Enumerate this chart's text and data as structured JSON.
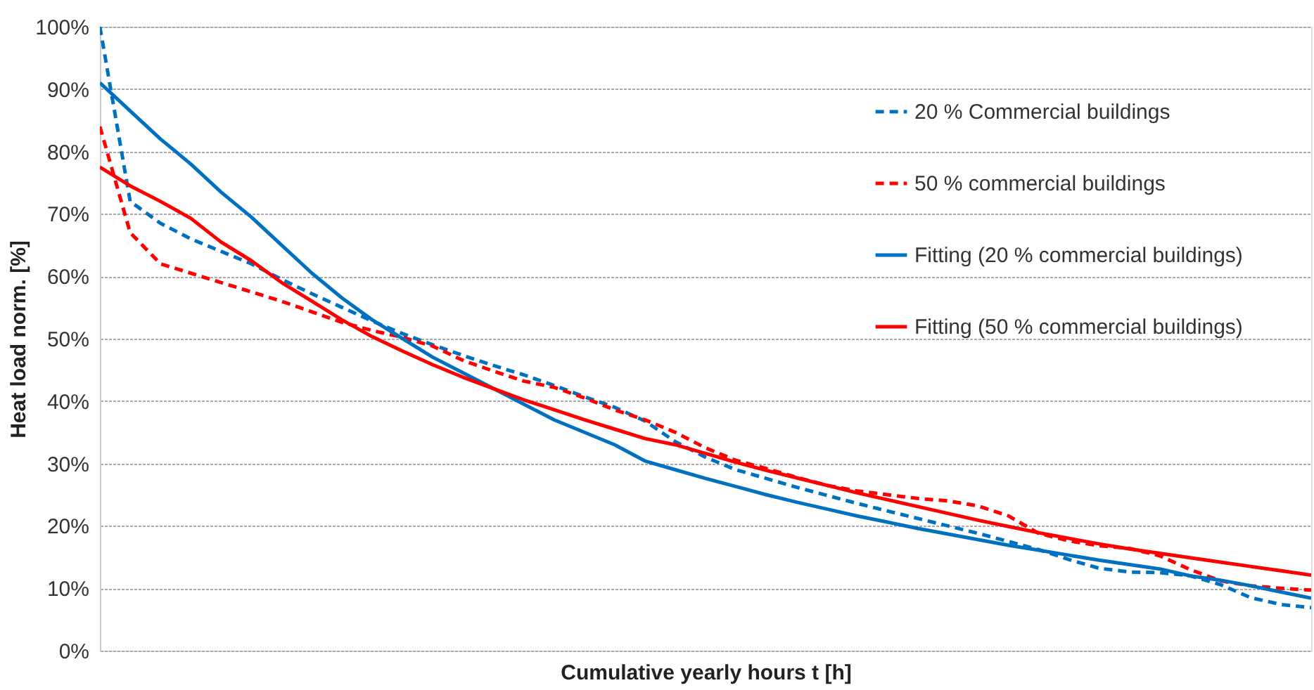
{
  "chart_data": {
    "type": "line",
    "xlabel": "Cumulative yearly hours t [h]",
    "ylabel": "Heat load norm. [%]",
    "categories": [
      null,
      null,
      null,
      null,
      null,
      null,
      null,
      null,
      null,
      null,
      null,
      null,
      null,
      null,
      null,
      null,
      null,
      null,
      null,
      null,
      null,
      null,
      null,
      null,
      null,
      null,
      null,
      null,
      null,
      null,
      null,
      null,
      null,
      null,
      null,
      null,
      null,
      null,
      null,
      null,
      null
    ],
    "series": [
      {
        "name": "20 % Commercial buildings",
        "color": "#0070c0",
        "line_style": "dashed",
        "values": [
          100,
          72,
          68.5,
          66,
          64,
          62,
          59.5,
          57.2,
          55,
          52.8,
          50.8,
          49,
          47.3,
          45.7,
          44.2,
          42.5,
          40.7,
          39,
          36.8,
          33.5,
          31,
          29,
          27.6,
          26.2,
          24.9,
          23.6,
          22.4,
          21.2,
          20,
          18.8,
          17.5,
          16.2,
          14.6,
          13.2,
          12.6,
          12.5,
          12,
          10.6,
          8.5,
          7.4,
          6.9
        ]
      },
      {
        "name": "50 % commercial buildings",
        "color": "#ff0000",
        "line_style": "dashed",
        "values": [
          84,
          67,
          62,
          60.5,
          59,
          57.5,
          56,
          54.3,
          52.6,
          51.3,
          50.2,
          48.8,
          46.5,
          44.8,
          43.2,
          42.2,
          40.5,
          38.6,
          37,
          35,
          32.5,
          30.5,
          29.2,
          27.8,
          26.5,
          25.6,
          25,
          24.4,
          24,
          23.2,
          21.6,
          18.8,
          17.6,
          16.8,
          16.4,
          15.2,
          13,
          11.2,
          10.4,
          10,
          9.7
        ]
      },
      {
        "name": "Fitting (20 % commercial buildings)",
        "color": "#0070c0",
        "line_style": "solid",
        "values": [
          91,
          86.5,
          82,
          78,
          73.5,
          69.5,
          65,
          60.5,
          56.5,
          53,
          50,
          47,
          44.5,
          42,
          39.5,
          37,
          35,
          33,
          30.4,
          29,
          27.6,
          26.3,
          25,
          23.8,
          22.7,
          21.6,
          20.6,
          19.6,
          18.7,
          17.8,
          16.9,
          16.1,
          15.3,
          14.5,
          13.8,
          13.1,
          12,
          11.3,
          10.4,
          9.4,
          8.4
        ]
      },
      {
        "name": "Fitting (50 % commercial buildings)",
        "color": "#ff0000",
        "line_style": "solid",
        "values": [
          77.5,
          74.5,
          72,
          69.3,
          65.5,
          62.5,
          59,
          56,
          53,
          50.3,
          48,
          45.8,
          43.8,
          42,
          40.2,
          38.6,
          37,
          35.5,
          34,
          33,
          31.6,
          30.2,
          28.9,
          27.7,
          26.5,
          25.3,
          24.2,
          23.1,
          22,
          20.9,
          19.9,
          18.9,
          18,
          17.1,
          16.3,
          15.6,
          14.9,
          14.2,
          13.5,
          12.8,
          12.1
        ]
      }
    ],
    "ylim": [
      0,
      100
    ],
    "yticks": [
      {
        "value": 0,
        "label": "0%"
      },
      {
        "value": 10,
        "label": "10%"
      },
      {
        "value": 20,
        "label": "20%"
      },
      {
        "value": 30,
        "label": "30%"
      },
      {
        "value": 40,
        "label": "40%"
      },
      {
        "value": 50,
        "label": "50%"
      },
      {
        "value": 60,
        "label": "60%"
      },
      {
        "value": 70,
        "label": "70%"
      },
      {
        "value": 80,
        "label": "80%"
      },
      {
        "value": 90,
        "label": "90%"
      },
      {
        "value": 100,
        "label": "100%"
      }
    ],
    "grid": "y",
    "legend": "top right",
    "tick_labels": "y"
  }
}
